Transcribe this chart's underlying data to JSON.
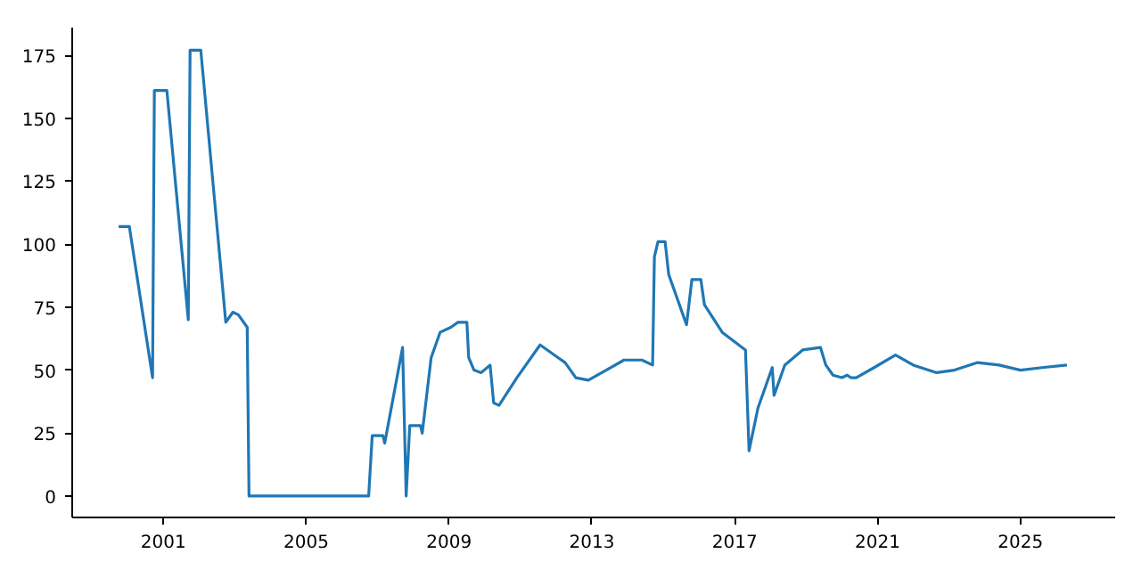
{
  "chart_data": {
    "type": "line",
    "x": [
      1999.75,
      2000.05,
      2000.7,
      2000.75,
      2001.1,
      2001.7,
      2001.75,
      2002.05,
      2002.75,
      2002.95,
      2003.1,
      2003.35,
      2003.4,
      2006.75,
      2006.85,
      2007.15,
      2007.2,
      2007.7,
      2007.8,
      2007.9,
      2008.2,
      2008.25,
      2008.5,
      2008.75,
      2009.05,
      2009.25,
      2009.5,
      2009.55,
      2009.7,
      2009.9,
      2010.15,
      2010.25,
      2010.4,
      2010.9,
      2011.55,
      2012.05,
      2012.25,
      2012.55,
      2012.9,
      2013.4,
      2013.9,
      2014.4,
      2014.7,
      2014.75,
      2014.85,
      2015.05,
      2015.15,
      2015.65,
      2015.8,
      2016.05,
      2016.15,
      2016.65,
      2017.3,
      2017.4,
      2017.65,
      2018.05,
      2018.1,
      2018.4,
      2018.9,
      2019.4,
      2019.55,
      2019.75,
      2020.0,
      2020.15,
      2020.25,
      2020.4,
      2020.9,
      2021.5,
      2022.0,
      2022.65,
      2023.15,
      2023.8,
      2024.4,
      2025.0,
      2025.6,
      2026.3
    ],
    "series": [
      {
        "color": "#1f77b4",
        "values": [
          107,
          107,
          47,
          161,
          161,
          70,
          177,
          177,
          69,
          73,
          72,
          67,
          0,
          0,
          24,
          24,
          21,
          59,
          0,
          28,
          28,
          25,
          55,
          65,
          67,
          69,
          69,
          55,
          50,
          49,
          52,
          37,
          36,
          47,
          60,
          55,
          53,
          47,
          46,
          50,
          54,
          54,
          52,
          95,
          101,
          101,
          88,
          68,
          86,
          86,
          76,
          65,
          58,
          18,
          35,
          51,
          40,
          52,
          58,
          59,
          52,
          48,
          47,
          48,
          47,
          47,
          51,
          56,
          52,
          49,
          50,
          53,
          52,
          50,
          51,
          52
        ]
      }
    ],
    "xlim": [
      1998.45,
      2027.65
    ],
    "ylim": [
      -8.5,
      186
    ],
    "xticks": [
      2001,
      2005,
      2009,
      2013,
      2017,
      2021,
      2025
    ],
    "yticks": [
      0,
      25,
      50,
      75,
      100,
      125,
      150,
      175
    ],
    "grid": false,
    "line_style": "solid",
    "marker": "none"
  }
}
